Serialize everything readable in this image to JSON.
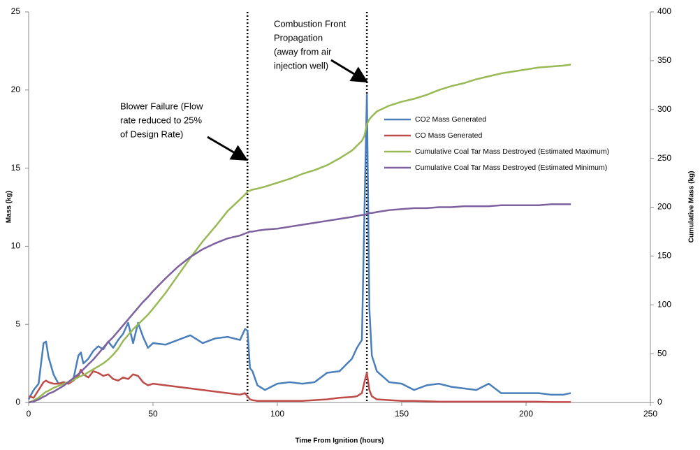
{
  "chart_data": {
    "type": "line",
    "xlabel": "Time From Ignition (hours)",
    "ylabel": "Mass (kg)",
    "y2label": "Cumulative Mass (kg)",
    "xlim": [
      0,
      250
    ],
    "xticks": [
      0,
      50,
      100,
      150,
      200,
      250
    ],
    "ylim": [
      0,
      25
    ],
    "yticks": [
      0,
      5,
      10,
      15,
      20,
      25
    ],
    "y2lim": [
      0,
      400
    ],
    "y2ticks": [
      0,
      50,
      100,
      150,
      200,
      250,
      300,
      350,
      400
    ],
    "legend": "right",
    "vlines": [
      88,
      136
    ],
    "annotations": [
      {
        "lines": [
          "Blower Failure (Flow",
          "rate reduced to 25%",
          "of Design Rate)"
        ]
      },
      {
        "lines": [
          "Combustion Front",
          "Propagation",
          "(away from air",
          "injection well)"
        ]
      }
    ],
    "x": [
      0,
      2,
      4,
      6,
      7,
      8,
      10,
      12,
      14,
      16,
      18,
      20,
      21,
      22,
      24,
      26,
      28,
      30,
      32,
      34,
      36,
      38,
      40,
      42,
      44,
      46,
      48,
      50,
      55,
      60,
      65,
      70,
      75,
      80,
      85,
      87,
      88,
      89,
      90,
      92,
      95,
      100,
      105,
      110,
      115,
      120,
      125,
      130,
      132,
      134,
      135,
      136,
      137,
      138,
      140,
      145,
      150,
      155,
      160,
      165,
      170,
      175,
      180,
      185,
      190,
      195,
      200,
      205,
      210,
      215,
      218
    ],
    "series": [
      {
        "name": "CO2 Mass Generated",
        "color": "#4a7ebb",
        "values": [
          0.2,
          0.8,
          1.2,
          3.8,
          3.9,
          2.9,
          1.8,
          1.2,
          1.3,
          1.2,
          1.5,
          3.0,
          3.2,
          2.5,
          2.8,
          3.3,
          3.6,
          3.4,
          3.9,
          3.5,
          4.0,
          4.4,
          5.1,
          3.8,
          5.1,
          4.2,
          3.5,
          3.8,
          3.7,
          4.0,
          4.3,
          3.8,
          4.1,
          4.2,
          4.0,
          4.7,
          4.6,
          2.2,
          2.0,
          1.1,
          0.8,
          1.2,
          1.3,
          1.2,
          1.3,
          1.9,
          2.0,
          2.8,
          3.5,
          4.0,
          12,
          19.7,
          6,
          3.0,
          2.0,
          1.3,
          1.2,
          0.8,
          1.1,
          1.2,
          1.0,
          0.9,
          0.8,
          1.2,
          0.6,
          0.6,
          0.6,
          0.6,
          0.5,
          0.5,
          0.6
        ]
      },
      {
        "name": "CO Mass Generated",
        "color": "#be4b48",
        "values": [
          0.4,
          0.3,
          0.8,
          1.3,
          1.4,
          1.3,
          1.2,
          1.2,
          1.3,
          1.2,
          1.4,
          1.7,
          2.1,
          1.8,
          1.6,
          2.0,
          1.9,
          1.7,
          1.8,
          1.5,
          1.4,
          1.6,
          1.5,
          1.8,
          1.7,
          1.3,
          1.1,
          1.2,
          1.1,
          1.0,
          0.9,
          0.8,
          0.7,
          0.6,
          0.5,
          0.6,
          0.4,
          0.2,
          0.15,
          0.1,
          0.1,
          0.1,
          0.1,
          0.1,
          0.15,
          0.2,
          0.3,
          0.35,
          0.4,
          0.6,
          1.3,
          1.9,
          0.8,
          0.4,
          0.2,
          0.15,
          0.1,
          0.1,
          0.08,
          0.05,
          0.05,
          0.05,
          0.05,
          0.05,
          0.05,
          0.05,
          0.05,
          0.05,
          0.03,
          0.03,
          0.03
        ]
      },
      {
        "name": "Cumulative Coal Tar Mass Destroyed  (Estimated Maximum)",
        "color": "#98b954",
        "axis": "y2",
        "values": [
          0,
          2,
          5,
          9,
          11,
          12,
          15,
          17,
          19,
          21,
          23,
          26,
          27,
          28,
          31,
          34,
          37,
          40,
          44,
          49,
          55,
          63,
          69,
          75,
          80,
          85,
          90,
          96,
          112,
          130,
          148,
          165,
          180,
          196,
          208,
          213,
          216,
          217,
          218,
          219,
          221,
          225,
          229,
          234,
          238,
          243,
          250,
          258,
          263,
          268,
          273,
          285,
          290,
          293,
          298,
          304,
          308,
          311,
          315,
          320,
          324,
          327,
          331,
          334,
          337,
          339,
          341,
          343,
          344,
          345,
          346
        ]
      },
      {
        "name": "Cumulative Coal Tar Mass Destroyed  (Estimated Minimum)",
        "color": "#7d60a0",
        "axis": "y2",
        "values": [
          0,
          1,
          3,
          6,
          7,
          9,
          11,
          14,
          17,
          21,
          25,
          29,
          31,
          34,
          39,
          44,
          50,
          56,
          62,
          67,
          73,
          79,
          85,
          91,
          97,
          103,
          108,
          114,
          127,
          139,
          149,
          157,
          163,
          168,
          171,
          173,
          174,
          175,
          175,
          176,
          177,
          178,
          180,
          182,
          184,
          186,
          188,
          190,
          191,
          192,
          192,
          193,
          194,
          194,
          195,
          197,
          198,
          199,
          199,
          200,
          200,
          201,
          201,
          201,
          202,
          202,
          202,
          202,
          203,
          203,
          203
        ]
      }
    ]
  }
}
